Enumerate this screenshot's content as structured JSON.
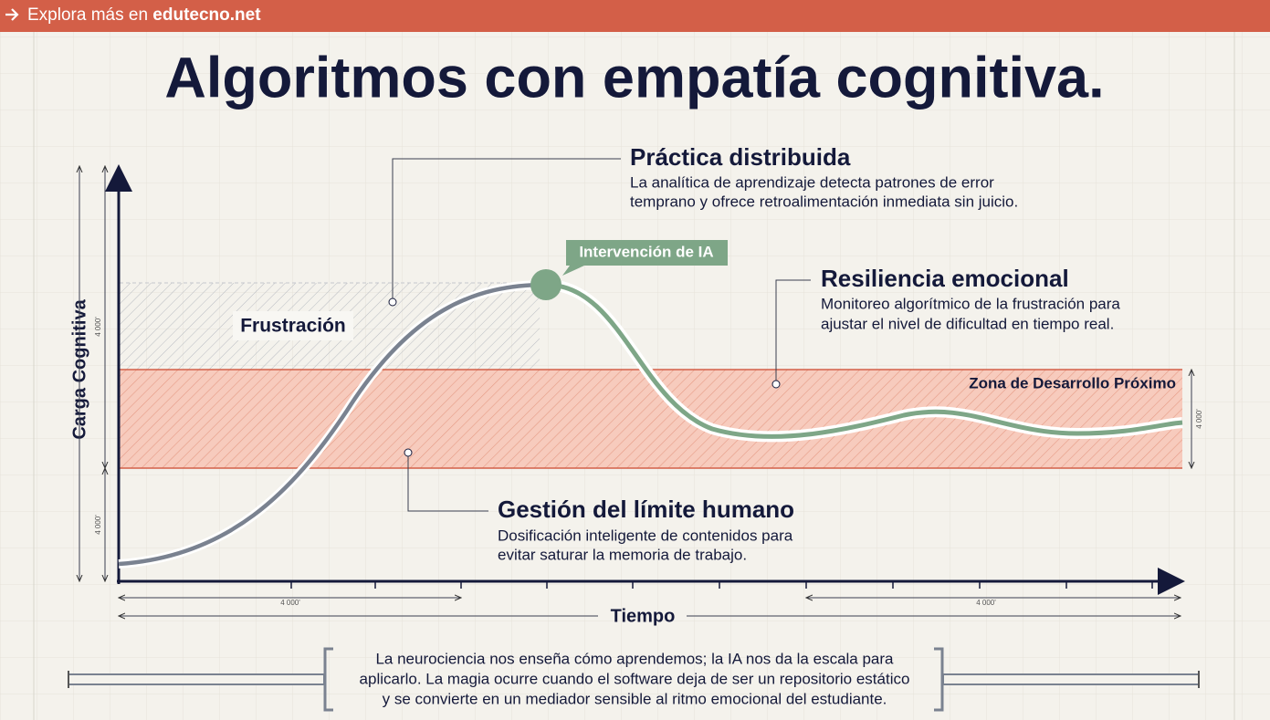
{
  "banner": {
    "prefix": "Explora más en",
    "link": "edutecno.net"
  },
  "title": "Algoritmos con empatía cognitiva.",
  "diagram": {
    "y_axis_label": "Carga Cognitiva",
    "x_axis_label": "Tiempo",
    "zones": [
      {
        "label": "Frustración"
      },
      {
        "label": "Zona de Desarrollo Próximo"
      }
    ],
    "peak_label": "Intervención de IA",
    "callouts": [
      {
        "title": "Práctica distribuida",
        "text": [
          "La analítica de aprendizaje detecta patrones de error",
          "temprano y ofrece retroalimentación inmediata sin juicio."
        ]
      },
      {
        "title": "Resiliencia emocional",
        "text": [
          "Monitoreo algorítmico de la frustración para",
          "ajustar el nivel de dificultad en tiempo real."
        ]
      },
      {
        "title": "Gestión del límite humano",
        "text": [
          "Dosificación inteligente de contenidos para",
          "evitar saturar la memoria de trabajo."
        ]
      }
    ],
    "dimension_labels": [
      "4 000'",
      "4 000'",
      "4 000'",
      "4 000'",
      "4 000'"
    ]
  },
  "quote": [
    "La neurociencia nos enseña cómo aprendemos; la IA nos da la escala para",
    "aplicarlo. La magia ocurre cuando el software deja de ser un repositorio estático",
    "y se convierte en un mediador sensible al ritmo emocional del estudiante."
  ]
}
